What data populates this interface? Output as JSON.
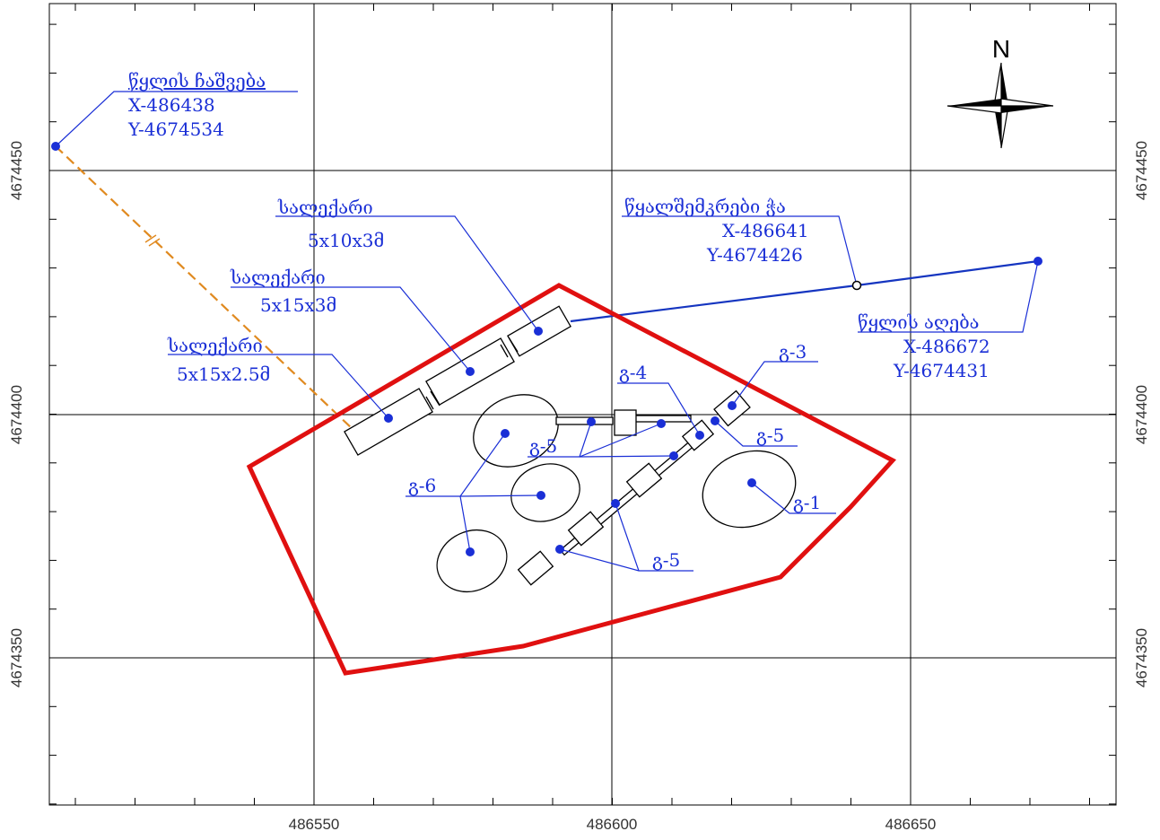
{
  "colors": {
    "boundary": "#e01010",
    "annotation": "#1a2fd6",
    "pipe_existing": "#1535c0",
    "pipe_planned": "#e08a20",
    "grid": "#000000",
    "features": "#000000"
  },
  "axes": {
    "x_ticks": [
      "486550",
      "486600",
      "486650"
    ],
    "y_ticks": [
      "4674450",
      "4674400",
      "4674350"
    ]
  },
  "north_label": "N",
  "labels": {
    "water_discharge": [
      "წყლის ჩაშვება",
      "X-486438",
      "Y-4674534"
    ],
    "water_intake": [
      "წყლის აღება",
      "X-486672",
      "Y-4674431"
    ],
    "collector_well": [
      "წყალშემკრები ჭა",
      "X-486641",
      "Y-4674426"
    ],
    "settler_1": [
      "სალექარი",
      "5x10x3მ"
    ],
    "settler_2": [
      "სალექარი",
      "5x15x3მ"
    ],
    "settler_3": [
      "სალექარი",
      "5x15x2.5მ"
    ],
    "g3": "გ-3",
    "g4": "გ-4",
    "g5_a": "გ-5",
    "g5_b": "გ-5",
    "g5_c": "გ-5",
    "g6": "გ-6",
    "g1": "გ-1"
  }
}
